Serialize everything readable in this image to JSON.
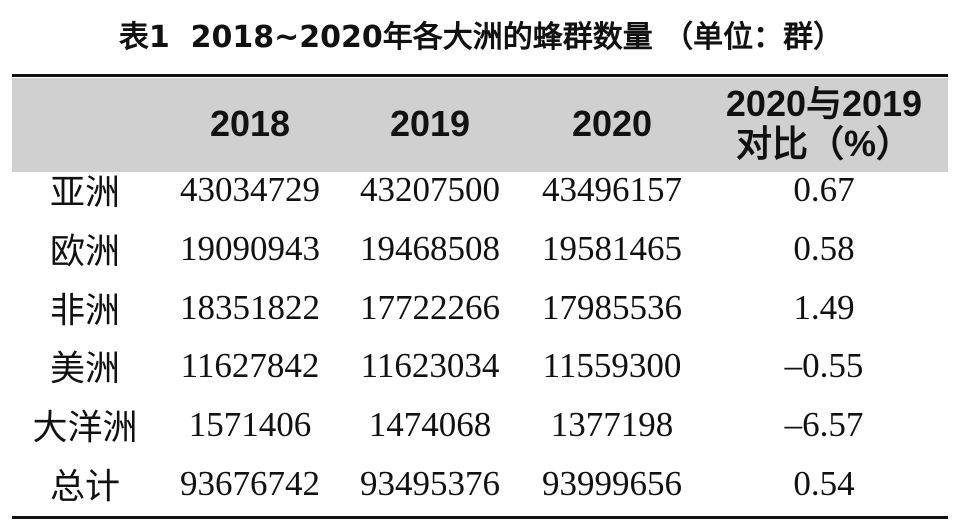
{
  "title": "表1  2018~2020年各大洲的蜂群数量 （单位：群）",
  "table": {
    "header": [
      "2018",
      "2019",
      "2020",
      [
        "2020与2019",
        "对比（%）"
      ]
    ],
    "rows": [
      [
        "亚洲",
        "43034729",
        "43207500",
        "43496157",
        "0.67"
      ],
      [
        "欧洲",
        "19090943",
        "19468508",
        "19581465",
        "0.58"
      ],
      [
        "非洲",
        "18351822",
        "17722266",
        "17985536",
        "1.49"
      ],
      [
        "美洲",
        "11627842",
        "11623034",
        "11559300",
        "–0.55"
      ],
      [
        "大洋洲",
        "1571406",
        "1474068",
        "1377198",
        "–6.57"
      ],
      [
        "总计",
        "93676742",
        "93495376",
        "93999656",
        "0.54"
      ]
    ]
  }
}
